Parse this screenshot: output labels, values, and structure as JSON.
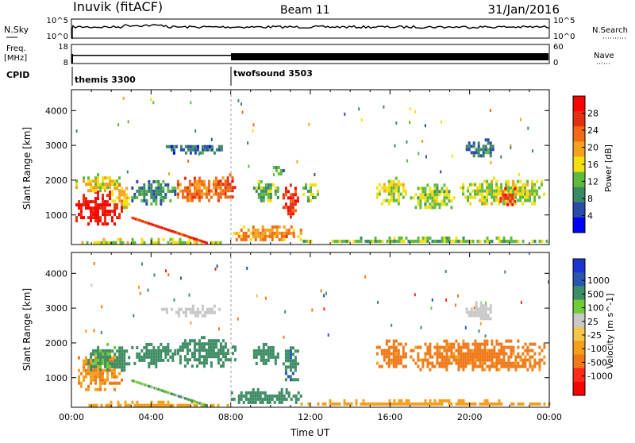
{
  "header": {
    "station": "Inuvik (fitACF)",
    "beam": "Beam 11",
    "date": "31/Jan/2016"
  },
  "panels": {
    "nsky": {
      "label": "N.Sky",
      "left_ticks": [
        "10^5",
        "10^0"
      ],
      "right_ticks": [
        "10^5",
        "10^0"
      ],
      "right_label": "N.Search"
    },
    "freq": {
      "label_line1": "Freq.",
      "label_line2": "[MHz]",
      "left_ticks": [
        "18",
        "8"
      ],
      "right_ticks": [
        "60",
        "0"
      ],
      "right_label": "Nave"
    },
    "cpid": {
      "label": "CPID",
      "segments": [
        "themis 3300",
        "twofsound 3503"
      ]
    }
  },
  "colors": {
    "power": [
      "#0000ff",
      "#2a4ba8",
      "#3a8a64",
      "#5fba3e",
      "#f2e010",
      "#f4a21c",
      "#f26a16",
      "#e23010",
      "#ff0000"
    ],
    "velocity": [
      "#ff0000",
      "#ff2a1a",
      "#f07a1a",
      "#f4a01c",
      "#f5c64a",
      "#c8c8c8",
      "#70cc38",
      "#3e8d64",
      "#2a55b0",
      "#1a35d0"
    ],
    "gray": "#c8c8c8"
  },
  "chart_data": [
    {
      "type": "heatmap",
      "title": "",
      "xlabel": "",
      "ylabel": "Slant Range [km]",
      "y_ticks": [
        "1000",
        "2000",
        "3000",
        "4000"
      ],
      "ylim": [
        150,
        4600
      ],
      "xlim": [
        0,
        24
      ],
      "colorbar": {
        "label": "Power [dB]",
        "ticks": [
          "4",
          "8",
          "12",
          "16",
          "20",
          "24",
          "28"
        ],
        "range": [
          0,
          32
        ]
      },
      "blobs": [
        {
          "t0": 0.2,
          "t1": 2.5,
          "r0": 700,
          "r1": 1700,
          "v": 29
        },
        {
          "t0": 0.2,
          "t1": 2.5,
          "r0": 1700,
          "r1": 2200,
          "v": 17
        },
        {
          "t0": 2.0,
          "t1": 2.9,
          "r0": 1200,
          "r1": 1900,
          "v": 18
        },
        {
          "t0": 3.0,
          "t1": 5.2,
          "r0": 1350,
          "r1": 2000,
          "v": 9
        },
        {
          "t0": 5.3,
          "t1": 7.5,
          "r0": 1400,
          "r1": 2100,
          "v": 22
        },
        {
          "t0": 7.2,
          "t1": 8.2,
          "r0": 1500,
          "r1": 2200,
          "v": 25
        },
        {
          "t0": 9.0,
          "t1": 10.4,
          "r0": 1400,
          "r1": 2000,
          "v": 12
        },
        {
          "t0": 10.6,
          "t1": 11.4,
          "r0": 900,
          "r1": 1900,
          "v": 27
        },
        {
          "t0": 11.6,
          "t1": 12.4,
          "r0": 1400,
          "r1": 2000,
          "v": 13
        },
        {
          "t0": 15.3,
          "t1": 16.8,
          "r0": 1300,
          "r1": 2100,
          "v": 15
        },
        {
          "t0": 17.0,
          "t1": 19.2,
          "r0": 1200,
          "r1": 1900,
          "v": 14
        },
        {
          "t0": 19.5,
          "t1": 23.8,
          "r0": 1300,
          "r1": 2100,
          "v": 15
        },
        {
          "t0": 21.5,
          "t1": 22.3,
          "r0": 1300,
          "r1": 1800,
          "v": 27
        },
        {
          "t0": 8.0,
          "t1": 11.5,
          "r0": 250,
          "r1": 700,
          "v": 21
        },
        {
          "t0": 11.5,
          "t1": 24.0,
          "r0": 200,
          "r1": 380,
          "v": 13
        },
        {
          "t0": 0.5,
          "t1": 8.0,
          "r0": 200,
          "r1": 340,
          "v": 15
        },
        {
          "t0": 4.5,
          "t1": 7.5,
          "r0": 2800,
          "r1": 3100,
          "v": 7
        },
        {
          "t0": 19.8,
          "t1": 21.2,
          "r0": 2700,
          "r1": 3200,
          "v": 8
        },
        {
          "t0": 10.0,
          "t1": 10.6,
          "r0": 2200,
          "r1": 2500,
          "v": 10
        }
      ],
      "streak": {
        "t0": 3.0,
        "r0": 950,
        "t1": 6.8,
        "r1": 220,
        "v": 27
      }
    },
    {
      "type": "heatmap",
      "title": "",
      "xlabel": "Time UT",
      "ylabel": "Slant Range [km]",
      "x_ticks": [
        "00:00",
        "04:00",
        "08:00",
        "12:00",
        "16:00",
        "20:00",
        "00:00"
      ],
      "y_ticks": [
        "1000",
        "2000",
        "3000",
        "4000"
      ],
      "ylim": [
        150,
        4600
      ],
      "xlim": [
        0,
        24
      ],
      "colorbar": {
        "label": "Velocity [m s^-1]",
        "ticks": [
          "1000",
          "500",
          "100",
          "25",
          "-25",
          "-100",
          "-500",
          "-1000"
        ],
        "range": [
          -1000,
          1000
        ]
      },
      "blobs": [
        {
          "t0": 0.2,
          "t1": 2.5,
          "r0": 700,
          "r1": 1800,
          "v": -90
        },
        {
          "t0": 0.8,
          "t1": 2.2,
          "r0": 1200,
          "r1": 2000,
          "v": 120
        },
        {
          "t0": 2.0,
          "t1": 2.9,
          "r0": 1200,
          "r1": 1900,
          "v": 200
        },
        {
          "t0": 3.0,
          "t1": 5.2,
          "r0": 1350,
          "r1": 2000,
          "v": 300
        },
        {
          "t0": 5.3,
          "t1": 8.2,
          "r0": 1300,
          "r1": 2200,
          "v": 300
        },
        {
          "t0": 9.0,
          "t1": 10.4,
          "r0": 1400,
          "r1": 2000,
          "v": 250
        },
        {
          "t0": 10.6,
          "t1": 11.4,
          "r0": 900,
          "r1": 1900,
          "v": 400
        },
        {
          "t0": 15.3,
          "t1": 16.8,
          "r0": 1300,
          "r1": 2100,
          "v": -150
        },
        {
          "t0": 17.0,
          "t1": 23.8,
          "r0": 1200,
          "r1": 2100,
          "v": -150
        },
        {
          "t0": 8.0,
          "t1": 11.5,
          "r0": 250,
          "r1": 700,
          "v": 250
        },
        {
          "t0": 11.5,
          "t1": 24.0,
          "r0": 200,
          "r1": 380,
          "v": -60
        },
        {
          "t0": 0.5,
          "t1": 8.0,
          "r0": 200,
          "r1": 340,
          "v": -60
        },
        {
          "t0": 4.5,
          "t1": 7.5,
          "r0": 2800,
          "r1": 3100,
          "v": 0
        },
        {
          "t0": 19.8,
          "t1": 21.2,
          "r0": 2700,
          "r1": 3200,
          "v": 0
        }
      ],
      "streak": {
        "t0": 3.0,
        "r0": 950,
        "t1": 6.8,
        "r1": 220,
        "v": 80
      }
    }
  ]
}
